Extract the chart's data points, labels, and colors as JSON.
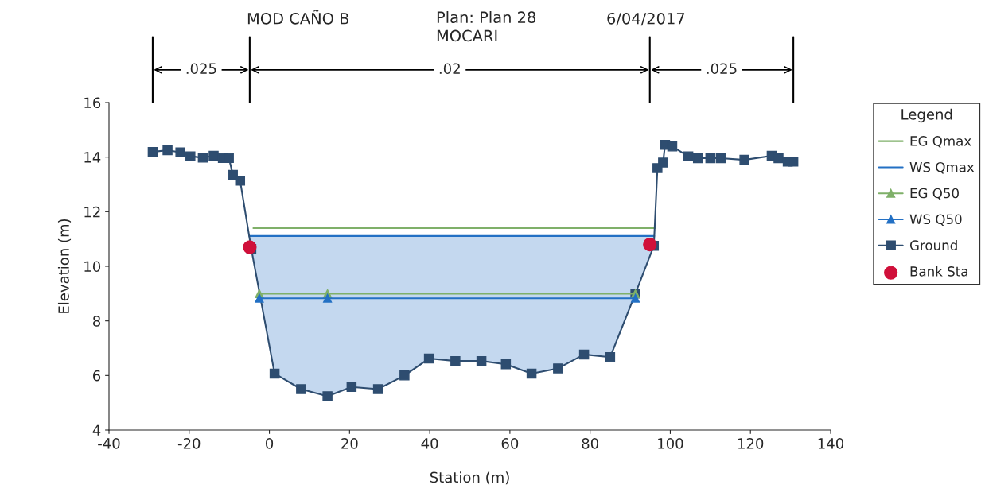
{
  "chart_data": {
    "type": "line",
    "title": "MOD CAÑO B",
    "subtitle": "Plan: Plan 28\nMOCARI",
    "annotations": [
      "6/04/2017",
      ".025",
      ".02",
      ".025"
    ],
    "xlabel": "Station (m)",
    "ylabel": "Elevation (m)",
    "legend_title": "Legend",
    "xlim": [
      -40,
      140
    ],
    "xticks": [
      -40,
      -20,
      0,
      20,
      40,
      60,
      80,
      100,
      120,
      140
    ],
    "ylim": [
      4,
      16
    ],
    "yticks": [
      4,
      6,
      8,
      10,
      12,
      14,
      16
    ],
    "grid": false,
    "legend": "right",
    "series": [
      {
        "name": "EG Qmax",
        "color": "#7fb069",
        "marker": "none",
        "x": [
          -4.0,
          96.3
        ],
        "values": [
          11.4,
          11.4
        ]
      },
      {
        "name": "WS Qmax",
        "color": "#2370c4",
        "marker": "none",
        "x": [
          -5.0,
          -4.5,
          1.3,
          7.9,
          14.5,
          20.5,
          27.1,
          33.7,
          39.8,
          46.4,
          52.9,
          59.0,
          65.4,
          72.0,
          78.5,
          85.0,
          91.3,
          95.9,
          96.0
        ],
        "values": [
          11.11,
          11.11,
          11.11,
          11.11,
          11.11,
          11.11,
          11.11,
          11.11,
          11.11,
          11.11,
          11.11,
          11.11,
          11.11,
          11.11,
          11.11,
          11.11,
          11.11,
          11.11,
          11.11
        ],
        "upper": [
          11.11,
          11.11,
          11.11,
          11.11,
          11.11,
          11.11,
          11.11,
          11.11,
          11.11,
          11.11,
          11.11,
          11.11,
          11.11,
          11.11,
          11.11,
          11.11,
          11.11,
          11.11,
          11.11
        ],
        "lower": [
          11.11,
          10.63,
          6.07,
          5.5,
          5.24,
          5.58,
          5.5,
          6.0,
          6.62,
          6.53,
          6.53,
          6.41,
          6.07,
          6.26,
          6.77,
          6.67,
          9.0,
          10.75,
          11.11
        ]
      },
      {
        "name": "EG Q50",
        "color": "#7fb069",
        "marker": "triangle",
        "x": [
          -2.5,
          14.5,
          91.3
        ],
        "values": [
          9.0,
          9.0,
          9.0
        ]
      },
      {
        "name": "WS Q50",
        "color": "#2370c4",
        "marker": "triangle",
        "x": [
          -2.5,
          14.5,
          91.3
        ],
        "values": [
          8.83,
          8.83,
          8.83
        ]
      },
      {
        "name": "Ground",
        "color": "#2e4d70",
        "marker": "square",
        "x": [
          -29.1,
          -25.4,
          -22.2,
          -19.7,
          -16.6,
          -13.9,
          -11.6,
          -10.1,
          -9.1,
          -7.3,
          -4.5,
          1.3,
          7.9,
          14.5,
          20.5,
          27.1,
          33.7,
          39.8,
          46.4,
          52.9,
          59.0,
          65.4,
          72.0,
          78.5,
          85.0,
          91.3,
          95.9,
          96.8,
          98.2,
          98.7,
          100.5,
          104.5,
          106.9,
          110.0,
          112.6,
          118.5,
          125.3,
          127.0,
          129.3,
          130.7
        ],
        "values": [
          14.19,
          14.25,
          14.17,
          14.03,
          13.98,
          14.05,
          13.97,
          13.97,
          13.35,
          13.14,
          10.63,
          6.07,
          5.5,
          5.24,
          5.58,
          5.5,
          6.0,
          6.62,
          6.53,
          6.53,
          6.41,
          6.07,
          6.26,
          6.77,
          6.67,
          9.0,
          10.75,
          13.6,
          13.8,
          14.45,
          14.39,
          14.03,
          13.96,
          13.96,
          13.96,
          13.9,
          14.05,
          13.96,
          13.84,
          13.84
        ]
      },
      {
        "name": "Bank Sta",
        "type": "scatter",
        "color": "#d0103a",
        "marker": "circle",
        "x": [
          -4.9,
          94.9
        ],
        "values": [
          10.7,
          10.8
        ]
      }
    ]
  }
}
